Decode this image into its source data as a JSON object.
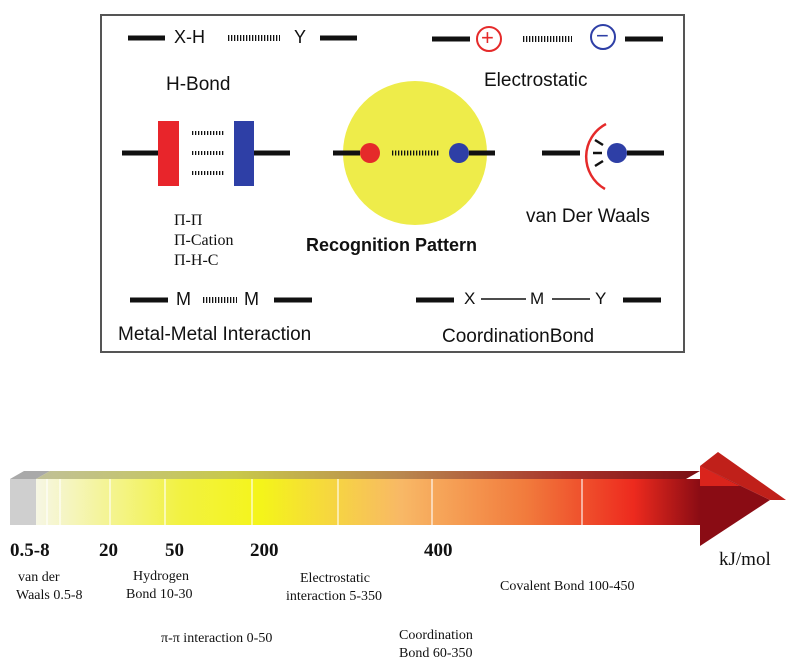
{
  "panel": {
    "hbond": {
      "left_label": "X-H",
      "right_label": "Y",
      "name": "H-Bond"
    },
    "electrostatic": {
      "plus": "+",
      "minus": "−",
      "name": "Electrostatic"
    },
    "pi": {
      "line1": "Π-Π",
      "line2": "Π-Cation",
      "line3": "Π-H-C"
    },
    "center_label": "Recognition Pattern",
    "vdw_name": "van Der Waals",
    "metal": {
      "left": "M",
      "right": "M",
      "name": "Metal-Metal Interaction"
    },
    "coordination": {
      "x": "X",
      "m": "M",
      "y": "Y",
      "name": "CoordinationBond"
    }
  },
  "scale": {
    "ticks": [
      "0.5-8",
      "20",
      "50",
      "200",
      "400"
    ],
    "unit": "kJ/mol",
    "categories": {
      "vdw": [
        "van der",
        "Waals 0.5-8"
      ],
      "hydrogen": [
        "Hydrogen",
        "Bond 10-30"
      ],
      "pi": "π-π interaction 0-50",
      "electrostatic": [
        "Electrostatic",
        "interaction 5-350"
      ],
      "coordination": [
        "Coordination",
        "Bond 60-350"
      ],
      "covalent": "Covalent Bond 100-450"
    }
  },
  "colors": {
    "hbond_red": "#e8252b",
    "hbond_blue": "#2e3fa6",
    "circle_yellow": "#eeec4a",
    "dot_red": "#e52a2a",
    "dot_blue": "#2e3fa6",
    "arrow_start": "#f4f4d0",
    "arrow_yellow": "#f3f41a",
    "arrow_orange": "#f7a35a",
    "arrow_red": "#ee2a1e",
    "arrow_dark": "#8a0c14"
  }
}
